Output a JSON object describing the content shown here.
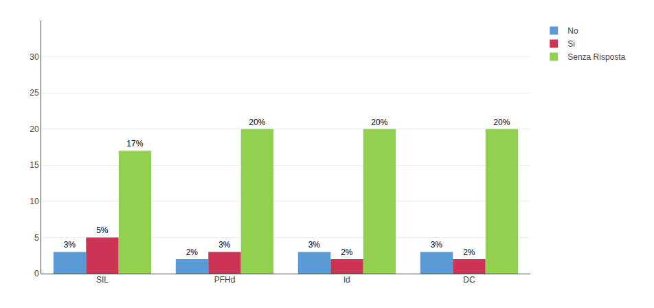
{
  "chart_data": {
    "type": "bar",
    "categories": [
      "SIL",
      "PFHd",
      "ld",
      "DC"
    ],
    "series": [
      {
        "name": "No",
        "color": "#5B9BD5",
        "values": [
          3,
          2,
          3,
          3
        ],
        "value_labels": [
          "3%",
          "2%",
          "3%",
          "3%"
        ]
      },
      {
        "name": "Si",
        "color": "#CC3355",
        "values": [
          5,
          3,
          2,
          2
        ],
        "value_labels": [
          "5%",
          "3%",
          "2%",
          "2%"
        ]
      },
      {
        "name": "Senza Risposta",
        "color": "#92D050",
        "values": [
          17,
          20,
          20,
          20
        ],
        "value_labels": [
          "17%",
          "20%",
          "20%",
          "20%"
        ]
      }
    ],
    "ylim": [
      0,
      35
    ],
    "yticks": [
      0,
      5,
      10,
      15,
      20,
      25,
      30
    ],
    "grid": true,
    "data_labels": true,
    "legend": "right"
  }
}
